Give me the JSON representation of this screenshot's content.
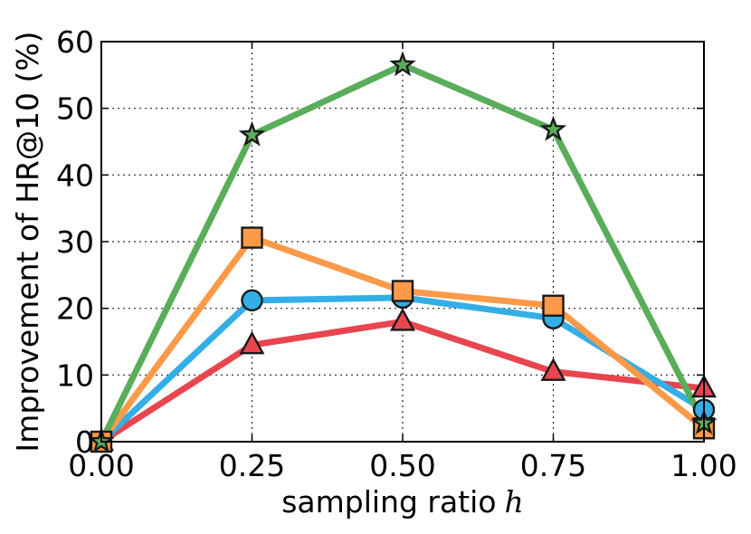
{
  "chart_data": {
    "type": "line",
    "xlabel": "sampling ratio",
    "xlabel_var": "h",
    "ylabel": "Improvement of HR@10 (%)",
    "x": [
      0.0,
      0.25,
      0.5,
      0.75,
      1.0
    ],
    "xticks": [
      "0.00",
      "0.25",
      "0.50",
      "0.75",
      "1.00"
    ],
    "yticks": [
      "0",
      "10",
      "20",
      "30",
      "40",
      "50",
      "60"
    ],
    "xlim": [
      0,
      1
    ],
    "ylim": [
      0,
      60
    ],
    "grid": true,
    "series": [
      {
        "name": "red-triangle",
        "marker": "triangle",
        "color": "#e8454f",
        "values": [
          0,
          14.5,
          18,
          10.5,
          8
        ]
      },
      {
        "name": "blue-circle",
        "marker": "circle",
        "color": "#33aee6",
        "values": [
          0,
          21.2,
          21.6,
          18.5,
          4.8
        ]
      },
      {
        "name": "orange-square",
        "marker": "square",
        "color": "#fc9a4a",
        "values": [
          0,
          30.6,
          22.6,
          20.4,
          2
        ]
      },
      {
        "name": "green-star",
        "marker": "star",
        "color": "#5aad5a",
        "values": [
          0,
          46,
          56.5,
          46.8,
          2.8
        ]
      }
    ]
  }
}
